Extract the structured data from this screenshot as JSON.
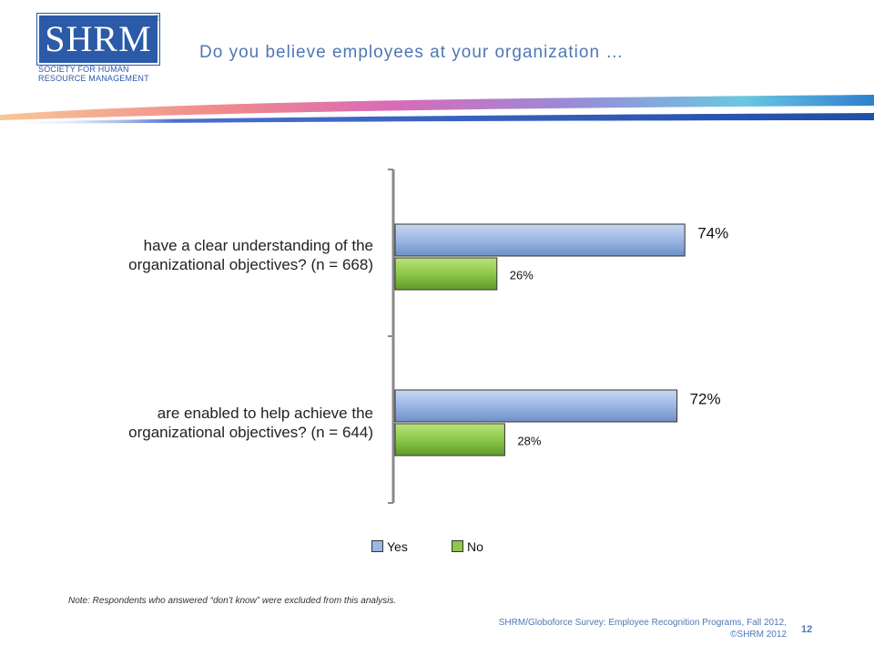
{
  "header": {
    "logo_text": "SHRM",
    "logo_registered": "®",
    "logo_sub_line1": "SOCIETY FOR HUMAN",
    "logo_sub_line2": "RESOURCE MANAGEMENT",
    "title": "Do you believe employees at your organization …"
  },
  "colors": {
    "brand_blue": "#2a5aa8",
    "title_blue": "#4f77b5",
    "yes_bar": "#9bb6e3",
    "no_bar": "#8dc84b"
  },
  "chart_data": {
    "type": "bar",
    "orientation": "horizontal",
    "categories": [
      "have a clear understanding of the organizational objectives? (n = 668)",
      "are enabled to help achieve the organizational objectives? (n = 644)"
    ],
    "category_lines": [
      [
        "have a clear understanding of the",
        "organizational objectives? (n = 668)"
      ],
      [
        "are enabled to help achieve the",
        "organizational objectives? (n = 644)"
      ]
    ],
    "series": [
      {
        "name": "Yes",
        "values": [
          74,
          72
        ],
        "labels": [
          "74%",
          "72%"
        ]
      },
      {
        "name": "No",
        "values": [
          26,
          28
        ],
        "labels": [
          "26%",
          "28%"
        ]
      }
    ],
    "value_unit": "%",
    "xlim": [
      0,
      100
    ],
    "legend": "bottom"
  },
  "footer": {
    "note": "Note: Respondents who answered “don’t know” were excluded from this analysis.",
    "source_line1": "SHRM/Globoforce Survey: Employee Recognition Programs, Fall 2012,",
    "source_line2": "©SHRM 2012",
    "page_number": "12"
  }
}
